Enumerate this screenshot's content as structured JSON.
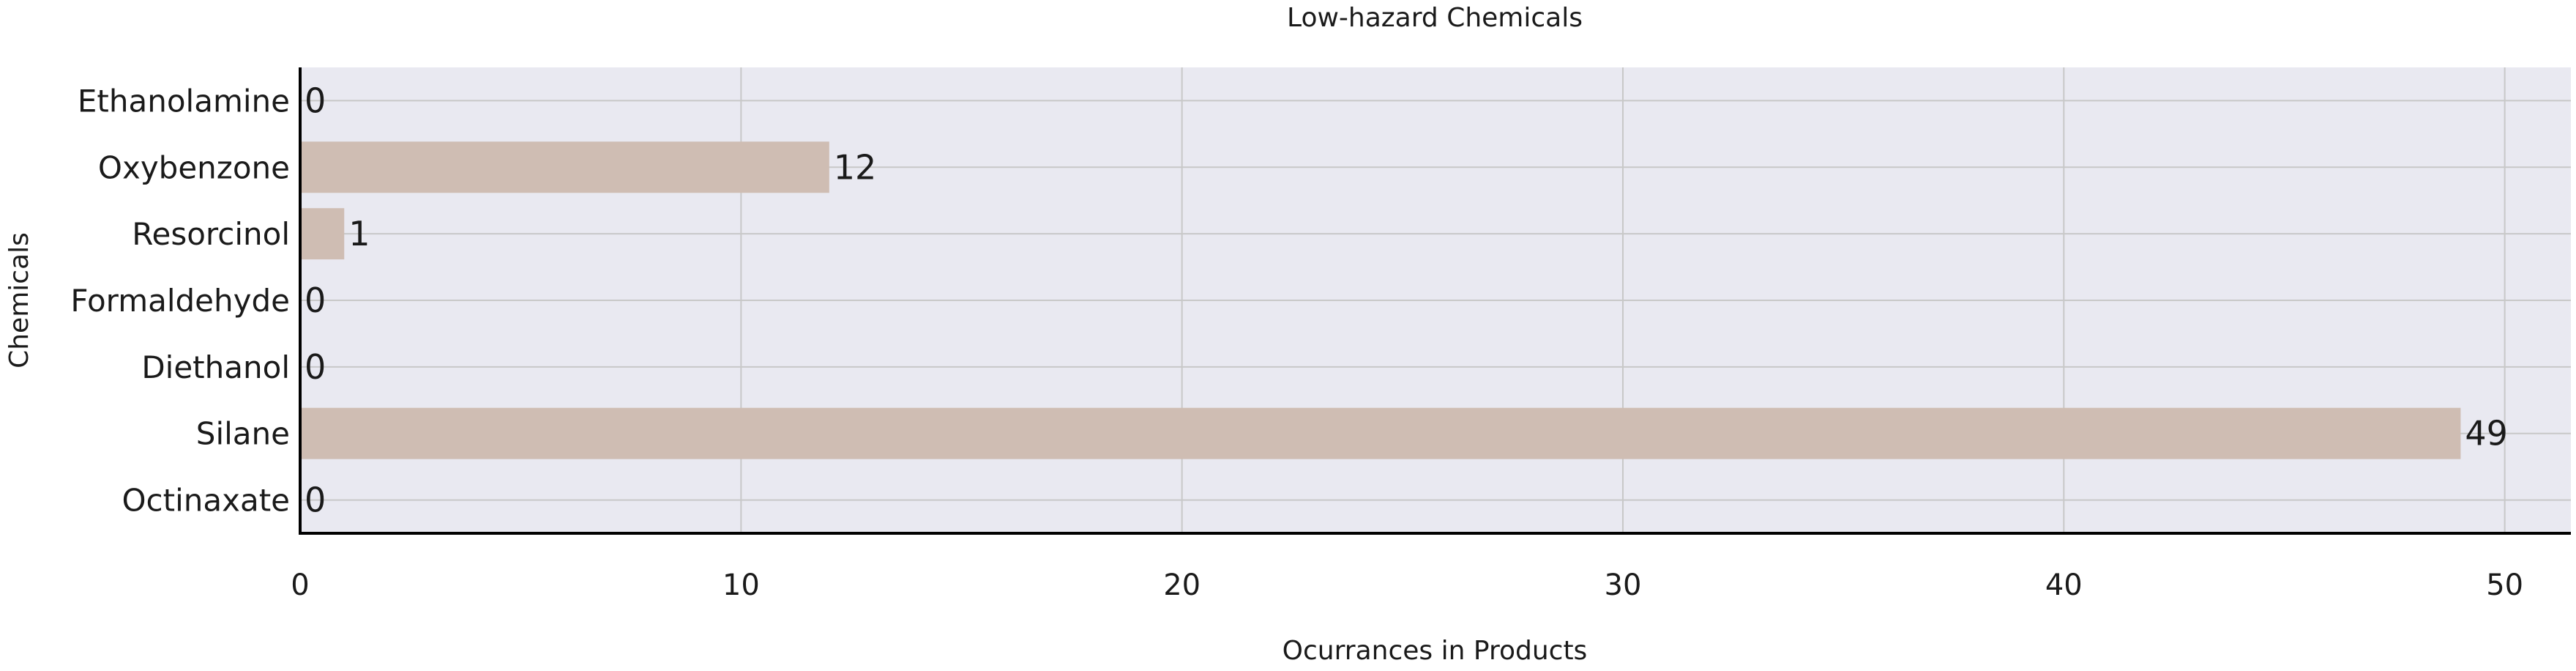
{
  "chart_data": {
    "type": "bar",
    "orientation": "horizontal",
    "title": "Low-hazard Chemicals",
    "xlabel": "Ocurrances in Products",
    "ylabel": "Chemicals",
    "categories": [
      "Ethanolamine",
      "Oxybenzone",
      "Resorcinol",
      "Formaldehyde",
      "Diethanol",
      "Silane",
      "Octinaxate"
    ],
    "values": [
      0,
      12,
      1,
      0,
      0,
      49,
      0
    ],
    "xlim": [
      0,
      51.5
    ],
    "xticks": [
      0,
      10,
      20,
      30,
      40,
      50
    ],
    "grid": true,
    "colors": {
      "bar": "#cfbdb3",
      "plot_bg": "#e9e9f1",
      "grid": "#c8c8c8",
      "axis": "#000000"
    }
  }
}
